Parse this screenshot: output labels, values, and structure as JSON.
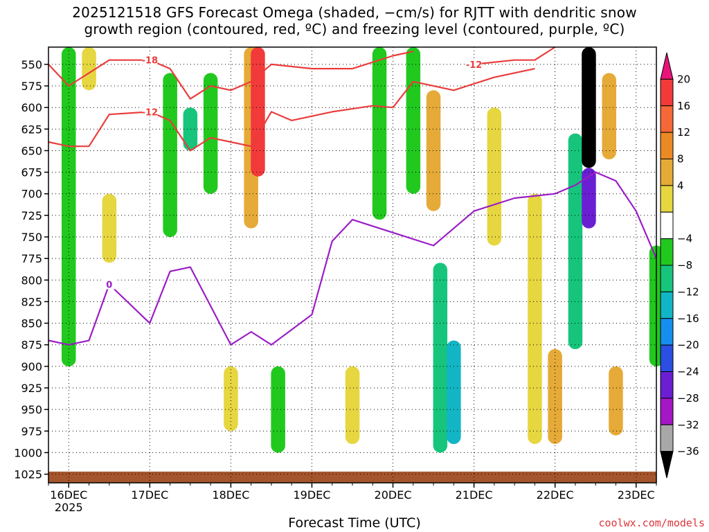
{
  "title_line1": "2025121518 GFS Forecast Omega (shaded, −cm/s) for RJTT with dendritic snow",
  "title_line2": "growth region (contoured, red, ºC) and freezing level (contoured, purple, ºC)",
  "xlabel": "Forecast Time (UTC)",
  "credit": "coolwx.com/models",
  "chart_data": {
    "type": "heatmap",
    "x_axis": {
      "type": "date",
      "start": "2025-12-15T18:00Z",
      "end": "2025-12-23T06:00Z",
      "tick_labels": [
        "16DEC",
        "17DEC",
        "18DEC",
        "19DEC",
        "20DEC",
        "21DEC",
        "22DEC",
        "23DEC"
      ],
      "tick_times": [
        "2025-12-16T00Z",
        "2025-12-17T00Z",
        "2025-12-18T00Z",
        "2025-12-19T00Z",
        "2025-12-20T00Z",
        "2025-12-21T00Z",
        "2025-12-22T00Z",
        "2025-12-23T00Z"
      ],
      "year_label": "2025"
    },
    "y_axis": {
      "unit": "hPa",
      "inverted": true,
      "range": [
        1035,
        530
      ],
      "ticks": [
        550,
        575,
        600,
        625,
        650,
        675,
        700,
        725,
        750,
        775,
        800,
        825,
        850,
        875,
        900,
        925,
        950,
        975,
        1000,
        1025
      ]
    },
    "grid": true,
    "colorbar": {
      "position": "right",
      "labels": [
        "20",
        "16",
        "12",
        "8",
        "4",
        "−4",
        "−8",
        "−12",
        "−16",
        "−20",
        "−24",
        "−28",
        "−32",
        "−36"
      ],
      "bins": [
        {
          "range": [
            24,
            99
          ],
          "color": "#e8147a"
        },
        {
          "range": [
            20,
            24
          ],
          "color": "#f23a3a"
        },
        {
          "range": [
            16,
            20
          ],
          "color": "#f56838"
        },
        {
          "range": [
            12,
            16
          ],
          "color": "#eb8a24"
        },
        {
          "range": [
            8,
            12
          ],
          "color": "#e5aa37"
        },
        {
          "range": [
            4,
            8
          ],
          "color": "#e6d640"
        },
        {
          "range": [
            -4,
            4
          ],
          "color": "#ffffff"
        },
        {
          "range": [
            -8,
            -4
          ],
          "color": "#21c91e"
        },
        {
          "range": [
            -12,
            -8
          ],
          "color": "#16c57b"
        },
        {
          "range": [
            -16,
            -12
          ],
          "color": "#12b5c5"
        },
        {
          "range": [
            -20,
            -16
          ],
          "color": "#168ef0"
        },
        {
          "range": [
            -24,
            -20
          ],
          "color": "#2a4fe2"
        },
        {
          "range": [
            -28,
            -24
          ],
          "color": "#6a1fd2"
        },
        {
          "range": [
            -32,
            -28
          ],
          "color": "#a416c6"
        },
        {
          "range": [
            -36,
            -32
          ],
          "color": "#a8a8a8"
        },
        {
          "range": [
            -99,
            -36
          ],
          "color": "#000000"
        }
      ]
    },
    "terrain_color": "#a5552c",
    "omega_regions": [
      {
        "t": "2025-12-16T00Z",
        "p_top": 530,
        "p_bot": 900,
        "value": -6
      },
      {
        "t": "2025-12-16T06Z",
        "p_top": 530,
        "p_bot": 580,
        "value": 5
      },
      {
        "t": "2025-12-16T12Z",
        "p_top": 700,
        "p_bot": 780,
        "value": 6
      },
      {
        "t": "2025-12-17T06Z",
        "p_top": 560,
        "p_bot": 750,
        "value": -6
      },
      {
        "t": "2025-12-17T12Z",
        "p_top": 600,
        "p_bot": 650,
        "value": -10
      },
      {
        "t": "2025-12-17T18Z",
        "p_top": 560,
        "p_bot": 700,
        "value": -6
      },
      {
        "t": "2025-12-18T06Z",
        "p_top": 530,
        "p_bot": 740,
        "value": 8
      },
      {
        "t": "2025-12-18T08Z",
        "p_top": 530,
        "p_bot": 680,
        "value": 22
      },
      {
        "t": "2025-12-18T14Z",
        "p_top": 900,
        "p_bot": 1000,
        "value": -6
      },
      {
        "t": "2025-12-18T00Z",
        "p_top": 900,
        "p_bot": 975,
        "value": 6
      },
      {
        "t": "2025-12-19T12Z",
        "p_top": 900,
        "p_bot": 990,
        "value": 6
      },
      {
        "t": "2025-12-19T20Z",
        "p_top": 530,
        "p_bot": 730,
        "value": -6
      },
      {
        "t": "2025-12-20T06Z",
        "p_top": 530,
        "p_bot": 700,
        "value": -6
      },
      {
        "t": "2025-12-20T14Z",
        "p_top": 780,
        "p_bot": 1000,
        "value": -9
      },
      {
        "t": "2025-12-20T18Z",
        "p_top": 870,
        "p_bot": 990,
        "value": -13
      },
      {
        "t": "2025-12-20T12Z",
        "p_top": 580,
        "p_bot": 720,
        "value": 8
      },
      {
        "t": "2025-12-21T06Z",
        "p_top": 600,
        "p_bot": 760,
        "value": 6
      },
      {
        "t": "2025-12-21T18Z",
        "p_top": 700,
        "p_bot": 990,
        "value": 5
      },
      {
        "t": "2025-12-22T06Z",
        "p_top": 630,
        "p_bot": 880,
        "value": -12
      },
      {
        "t": "2025-12-22T10Z",
        "p_top": 530,
        "p_bot": 670,
        "value": -40
      },
      {
        "t": "2025-12-22T10Z",
        "p_top": 670,
        "p_bot": 740,
        "value": -26
      },
      {
        "t": "2025-12-22T00Z",
        "p_top": 880,
        "p_bot": 990,
        "value": 10
      },
      {
        "t": "2025-12-22T16Z",
        "p_top": 560,
        "p_bot": 660,
        "value": 10
      },
      {
        "t": "2025-12-22T18Z",
        "p_top": 900,
        "p_bot": 980,
        "value": 9
      },
      {
        "t": "2025-12-23T06Z",
        "p_top": 760,
        "p_bot": 900,
        "value": -6
      }
    ],
    "series": [
      {
        "name": "dendritic snow growth region",
        "unit": "ºC",
        "color": "#ea3c3c",
        "lines": [
          {
            "label": "-18",
            "label_at": "2025-12-17T00Z",
            "points": [
              [
                "2025-12-15T18Z",
                550
              ],
              [
                "2025-12-16T00Z",
                575
              ],
              [
                "2025-12-16T06Z",
                560
              ],
              [
                "2025-12-16T12Z",
                545
              ],
              [
                "2025-12-16T18Z",
                545
              ],
              [
                "2025-12-17T00Z",
                545
              ],
              [
                "2025-12-17T06Z",
                555
              ],
              [
                "2025-12-17T12Z",
                590
              ],
              [
                "2025-12-17T18Z",
                575
              ],
              [
                "2025-12-18T00Z",
                580
              ],
              [
                "2025-12-18T06Z",
                570
              ],
              [
                "2025-12-18T12Z",
                550
              ],
              [
                "2025-12-19T00Z",
                555
              ],
              [
                "2025-12-19T12Z",
                555
              ],
              [
                "2025-12-20T00Z",
                540
              ],
              [
                "2025-12-20T06Z",
                535
              ]
            ]
          },
          {
            "label": "-12",
            "label_at": "2025-12-17T00Z",
            "points": [
              [
                "2025-12-15T18Z",
                640
              ],
              [
                "2025-12-16T00Z",
                645
              ],
              [
                "2025-12-16T06Z",
                645
              ],
              [
                "2025-12-16T12Z",
                608
              ],
              [
                "2025-12-17T00Z",
                605
              ],
              [
                "2025-12-17T06Z",
                615
              ],
              [
                "2025-12-17T12Z",
                650
              ],
              [
                "2025-12-17T18Z",
                635
              ],
              [
                "2025-12-18T00Z",
                640
              ],
              [
                "2025-12-18T06Z",
                645
              ],
              [
                "2025-12-18T12Z",
                605
              ],
              [
                "2025-12-18T18Z",
                615
              ],
              [
                "2025-12-19T06Z",
                605
              ],
              [
                "2025-12-19T18Z",
                598
              ],
              [
                "2025-12-20T00Z",
                600
              ],
              [
                "2025-12-20T06Z",
                570
              ],
              [
                "2025-12-20T18Z",
                580
              ],
              [
                "2025-12-21T06Z",
                565
              ],
              [
                "2025-12-21T18Z",
                555
              ]
            ]
          },
          {
            "label": "-12",
            "label_at": "2025-12-21T00Z",
            "points": [
              [
                "2025-12-21T00Z",
                550
              ],
              [
                "2025-12-21T12Z",
                545
              ],
              [
                "2025-12-21T18Z",
                545
              ],
              [
                "2025-12-22T00Z",
                530
              ]
            ]
          }
        ]
      },
      {
        "name": "freezing level",
        "unit": "ºC",
        "color": "#9a1dc6",
        "lines": [
          {
            "label": "0",
            "label_at": "2025-12-16T12Z",
            "points": [
              [
                "2025-12-15T18Z",
                870
              ],
              [
                "2025-12-16T00Z",
                875
              ],
              [
                "2025-12-16T06Z",
                870
              ],
              [
                "2025-12-16T12Z",
                805
              ],
              [
                "2025-12-17T00Z",
                850
              ],
              [
                "2025-12-17T06Z",
                790
              ],
              [
                "2025-12-17T12Z",
                785
              ],
              [
                "2025-12-18T00Z",
                875
              ],
              [
                "2025-12-18T06Z",
                860
              ],
              [
                "2025-12-18T12Z",
                875
              ],
              [
                "2025-12-19T00Z",
                840
              ],
              [
                "2025-12-19T06Z",
                755
              ],
              [
                "2025-12-19T12Z",
                730
              ],
              [
                "2025-12-20T00Z",
                745
              ],
              [
                "2025-12-20T12Z",
                760
              ],
              [
                "2025-12-21T00Z",
                720
              ],
              [
                "2025-12-21T12Z",
                705
              ],
              [
                "2025-12-22T00Z",
                700
              ],
              [
                "2025-12-22T06Z",
                690
              ],
              [
                "2025-12-22T12Z",
                675
              ],
              [
                "2025-12-22T18Z",
                685
              ],
              [
                "2025-12-23T00Z",
                720
              ],
              [
                "2025-12-23T06Z",
                775
              ]
            ]
          }
        ]
      }
    ]
  }
}
